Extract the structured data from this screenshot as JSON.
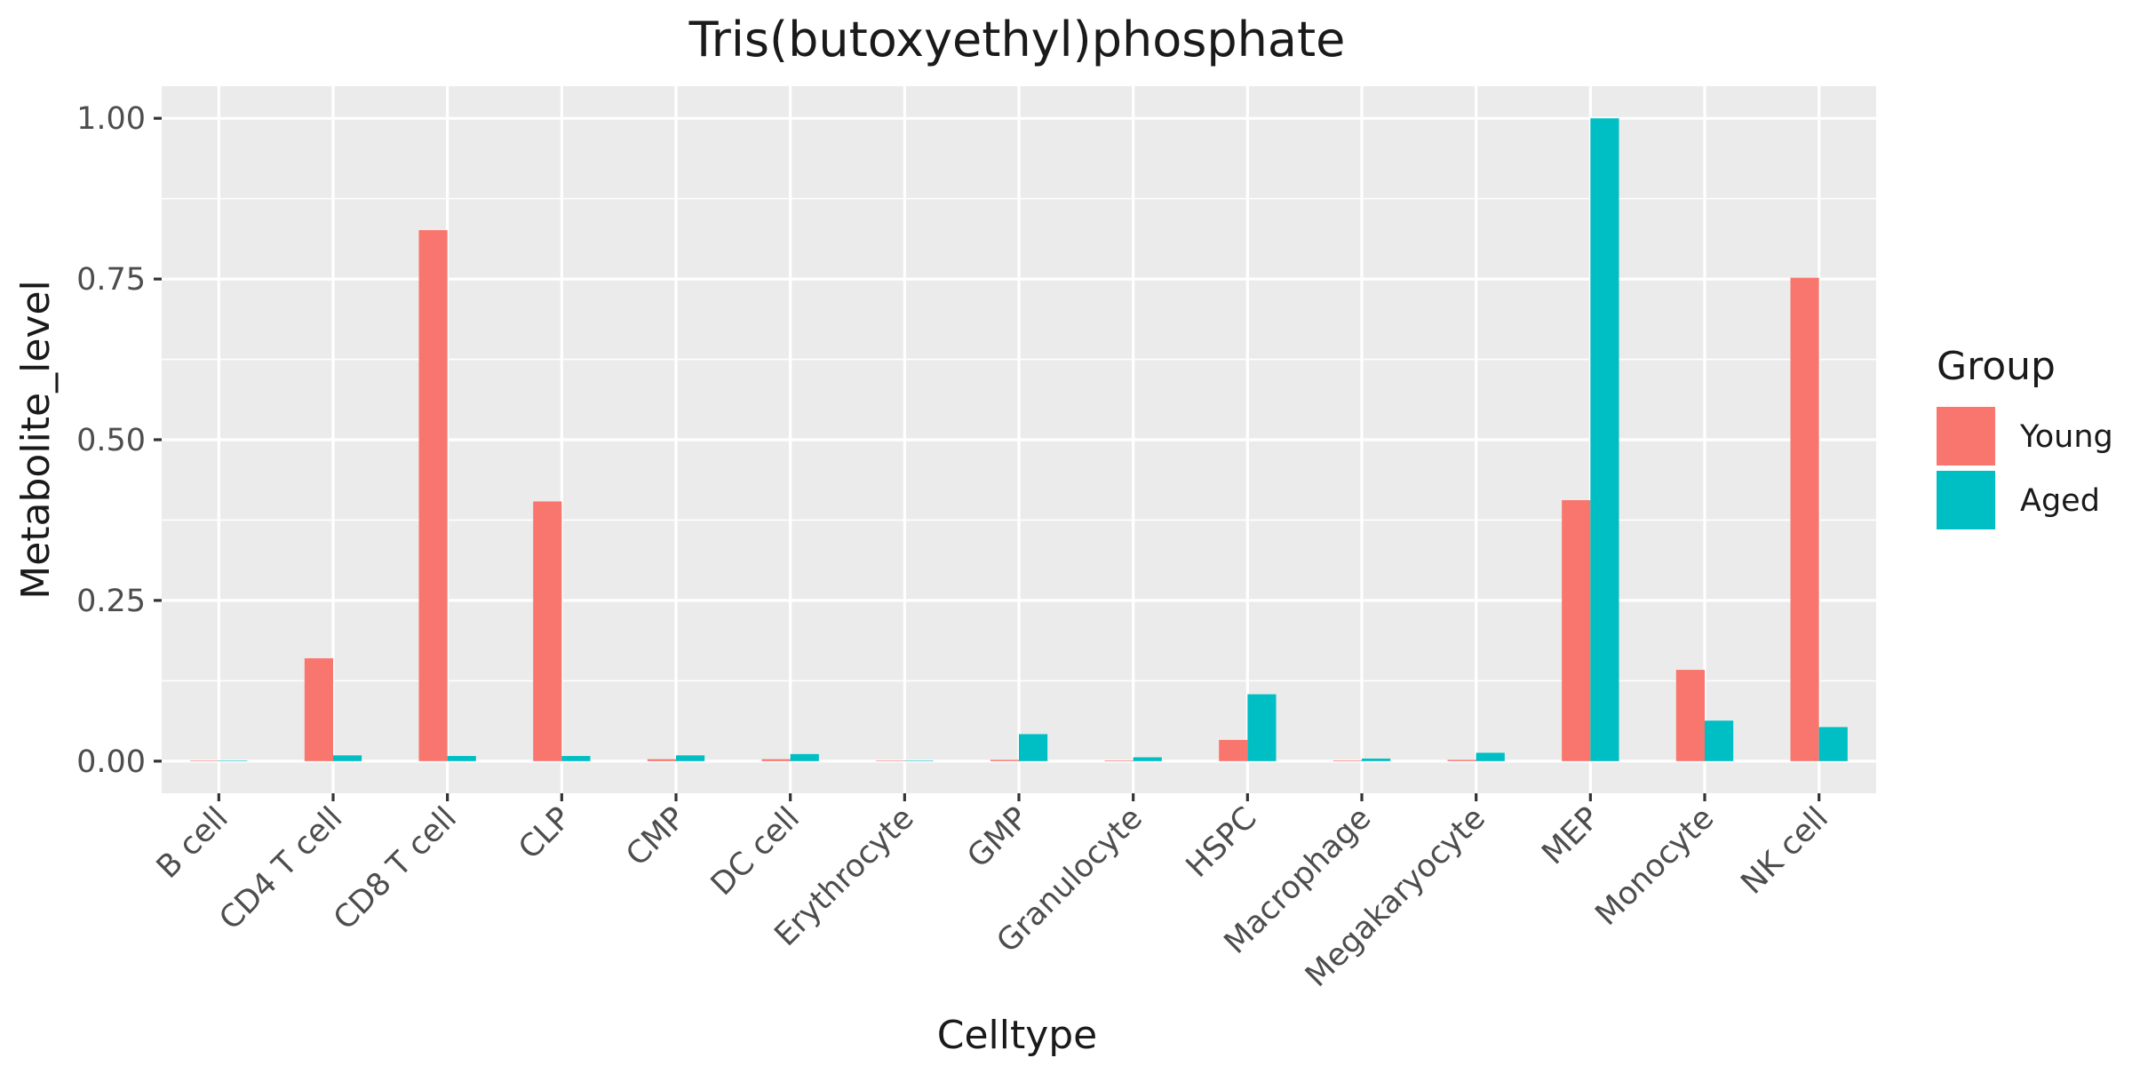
{
  "chart_data": {
    "type": "bar",
    "title": "Tris(butoxyethyl)phosphate",
    "xlabel": "Celltype",
    "ylabel": "Metabolite_level",
    "ylim": [
      -0.05,
      1.05
    ],
    "yticks": [
      "0.00",
      "0.25",
      "0.50",
      "0.75",
      "1.00"
    ],
    "ytick_values": [
      0,
      0.25,
      0.5,
      0.75,
      1.0
    ],
    "categories": [
      "B cell",
      "CD4 T cell",
      "CD8 T cell",
      "CLP",
      "CMP",
      "DC cell",
      "Erythrocyte",
      "GMP",
      "Granulocyte",
      "HSPC",
      "Macrophage",
      "Megakaryocyte",
      "MEP",
      "Monocyte",
      "NK cell"
    ],
    "series": [
      {
        "name": "Young",
        "color": "#F8766D",
        "values": [
          0,
          0.16,
          0.826,
          0.404,
          0.003,
          0.003,
          0.0005,
          0.002,
          0.001,
          0.033,
          0.001,
          0.002,
          0.406,
          0.142,
          0.752
        ]
      },
      {
        "name": "Aged",
        "color": "#00BFC4",
        "values": [
          0,
          0.009,
          0.008,
          0.008,
          0.009,
          0.011,
          0.0005,
          0.042,
          0.006,
          0.104,
          0.004,
          0.013,
          1.0,
          0.063,
          0.053
        ]
      }
    ],
    "legend": {
      "title": "Group",
      "position": "right"
    },
    "grid": true,
    "panel_color": "#EBEBEB"
  }
}
